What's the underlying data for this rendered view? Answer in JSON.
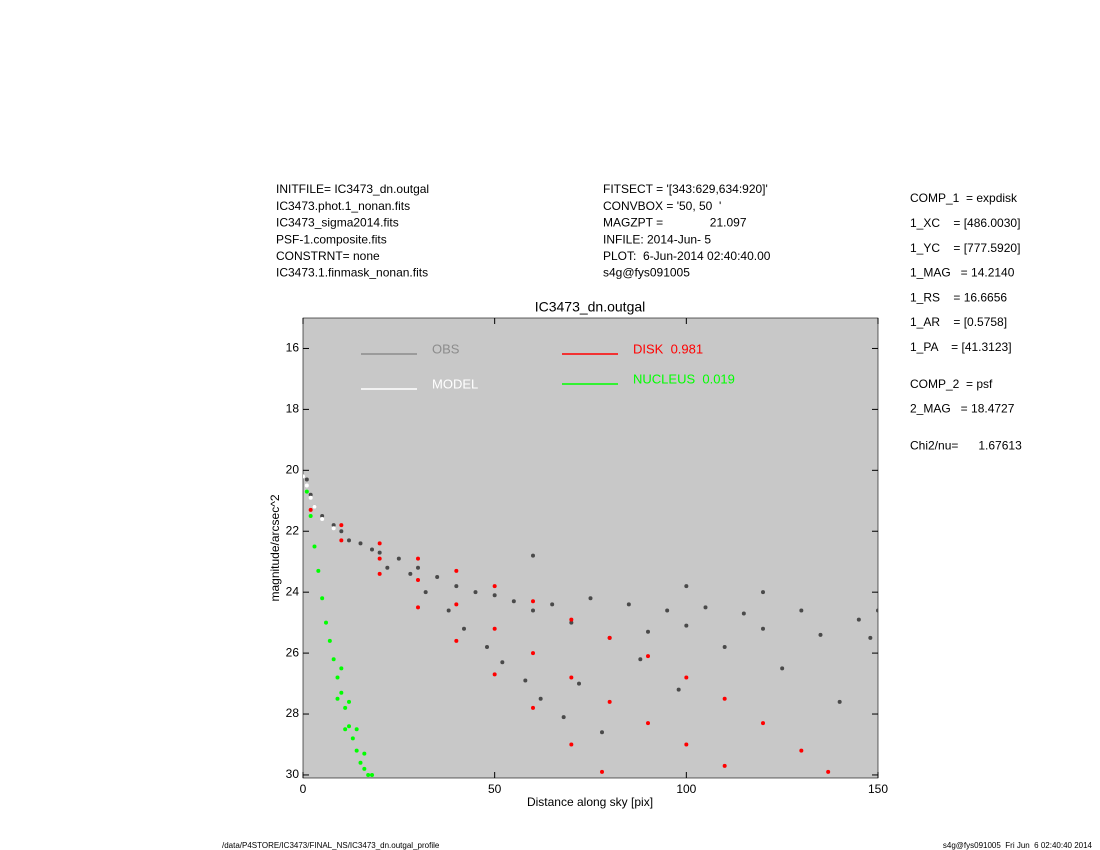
{
  "header_left": [
    "INITFILE= IC3473_dn.outgal",
    "IC3473.phot.1_nonan.fits",
    "IC3473_sigma2014.fits",
    "PSF-1.composite.fits",
    "CONSTRNT= none",
    "IC3473.1.finmask_nonan.fits"
  ],
  "header_middle": [
    "FITSECT = '[343:629,634:920]'",
    "CONVBOX = '50, 50  '",
    "MAGZPT =              21.097",
    "INFILE: 2014-Jun- 5",
    "PLOT:  6-Jun-2014 02:40:40.00",
    "s4g@fys091005"
  ],
  "components": [
    [
      "COMP_1  = expdisk",
      "1_XC    = [486.0030]",
      "1_YC    = [777.5920]",
      "1_MAG   = 14.2140",
      "1_RS    = 16.6656",
      "1_AR    = [0.5758]",
      "1_PA    = [41.3123]"
    ],
    [
      "COMP_2  = psf",
      "2_MAG   = 18.4727"
    ],
    [
      "Chi2/nu=      1.67613"
    ]
  ],
  "footer_left": "/data/P4STORE/IC3473/FINAL_NS/IC3473_dn.outgal_profile",
  "footer_right": "s4g@fys091005  Fri Jun  6 02:40:40 2014",
  "chart_data": {
    "type": "scatter",
    "title": "IC3473_dn.outgal",
    "xlabel": "Distance along sky [pix]",
    "ylabel": "magnitude/arcsec^2",
    "xlim": [
      0,
      150
    ],
    "xticks": [
      0,
      50,
      100,
      150
    ],
    "ylim": [
      30.1,
      15
    ],
    "yticks": [
      16,
      18,
      20,
      22,
      24,
      26,
      28,
      30
    ],
    "y_inverted": true,
    "grid": false,
    "background": "#c8c8c8",
    "series": [
      {
        "name": "OBS",
        "color": "#4a4a4a",
        "legend_color": "#8c8c8c",
        "x": [
          1,
          2,
          3,
          5,
          8,
          10,
          12,
          15,
          18,
          20,
          22,
          25,
          28,
          30,
          32,
          35,
          38,
          40,
          42,
          45,
          48,
          50,
          52,
          55,
          58,
          60,
          62,
          65,
          68,
          70,
          72,
          75,
          78,
          80,
          85,
          88,
          90,
          95,
          98,
          100,
          105,
          110,
          115,
          120,
          125,
          130,
          135,
          140,
          145,
          148,
          150,
          60,
          100,
          120
        ],
        "values": [
          20.3,
          20.8,
          21.2,
          21.5,
          21.8,
          22,
          22.3,
          22.4,
          22.6,
          22.7,
          23.2,
          22.9,
          23.4,
          23.2,
          24,
          23.5,
          24.6,
          23.8,
          25.2,
          24,
          25.8,
          24.1,
          26.3,
          24.3,
          26.9,
          24.6,
          27.5,
          24.4,
          28.1,
          25,
          27,
          24.2,
          28.6,
          25.5,
          24.4,
          26.2,
          25.3,
          24.6,
          27.2,
          25.1,
          24.5,
          25.8,
          24.7,
          25.2,
          26.5,
          24.6,
          25.4,
          27.6,
          24.9,
          25.5,
          24.6,
          22.8,
          23.8,
          24
        ]
      },
      {
        "name": "MODEL",
        "color": "#ffffff",
        "legend_color": "#ffffff",
        "x": [
          0,
          1,
          2,
          3,
          5,
          8
        ],
        "values": [
          20.2,
          20.5,
          20.9,
          21.2,
          21.6,
          21.9
        ]
      },
      {
        "name": "DISK  0.981",
        "color": "#ff0000",
        "legend_color": "#ff0000",
        "x": [
          2,
          10,
          20,
          30,
          40,
          50,
          60,
          70,
          80,
          90,
          100,
          110,
          120,
          130,
          137,
          10,
          20,
          30,
          40,
          50,
          60,
          70,
          78,
          20,
          40,
          60,
          80,
          100,
          110,
          90,
          70,
          50,
          30
        ],
        "values": [
          21.3,
          21.8,
          22.4,
          22.9,
          23.3,
          23.8,
          24.3,
          24.9,
          25.5,
          26.1,
          26.8,
          27.5,
          28.3,
          29.2,
          29.9,
          22.3,
          23.4,
          24.5,
          25.6,
          26.7,
          27.8,
          29,
          29.9,
          22.9,
          24.4,
          26,
          27.6,
          29,
          29.7,
          28.3,
          26.8,
          25.2,
          23.6
        ]
      },
      {
        "name": "NUCLEUS  0.019",
        "color": "#00ff00",
        "legend_color": "#00ff00",
        "x": [
          1,
          2,
          3,
          4,
          5,
          6,
          7,
          8,
          9,
          10,
          11,
          12,
          13,
          14,
          15,
          16,
          17,
          18,
          10,
          12,
          14,
          16,
          9,
          11
        ],
        "values": [
          20.7,
          21.5,
          22.5,
          23.3,
          24.2,
          25,
          25.6,
          26.2,
          26.8,
          27.3,
          27.8,
          28.4,
          28.8,
          29.2,
          29.6,
          29.8,
          30,
          30,
          26.5,
          27.6,
          28.5,
          29.3,
          27.5,
          28.5
        ]
      }
    ]
  }
}
